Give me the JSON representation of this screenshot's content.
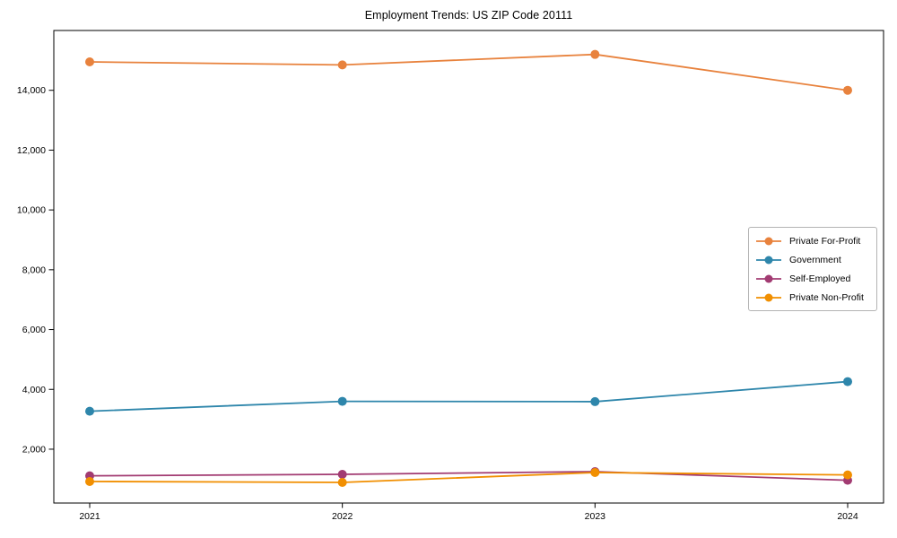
{
  "window": {
    "background": "#ffffff"
  },
  "chart_data": {
    "type": "line",
    "title": "Employment Trends: US ZIP Code 20111",
    "x": [
      "2021",
      "2022",
      "2023",
      "2024"
    ],
    "series": [
      {
        "name": "Private For-Profit",
        "color": "#e8823d",
        "values": [
          14950,
          14850,
          15200,
          14000
        ]
      },
      {
        "name": "Government",
        "color": "#2e86ab",
        "values": [
          3270,
          3600,
          3590,
          4260
        ]
      },
      {
        "name": "Self-Employed",
        "color": "#a23b72",
        "values": [
          1110,
          1160,
          1250,
          960
        ]
      },
      {
        "name": "Private Non-Profit",
        "color": "#f18f01",
        "values": [
          920,
          890,
          1220,
          1140
        ]
      }
    ],
    "xlabel": "",
    "ylabel": "",
    "ylim": [
      200,
      16000
    ],
    "yticks": [
      2000,
      4000,
      6000,
      8000,
      10000,
      12000,
      14000
    ],
    "ytick_labels": [
      "2,000",
      "4,000",
      "6,000",
      "8,000",
      "10,000",
      "12,000",
      "14,000"
    ],
    "xtick_labels": [
      "2021",
      "2022",
      "2023",
      "2024"
    ],
    "grid": false,
    "legend_position": "center-right",
    "marker": "circle",
    "axis_color": "#000000",
    "text_color": "#000000",
    "legend_border_color": "#b3b3b3"
  }
}
